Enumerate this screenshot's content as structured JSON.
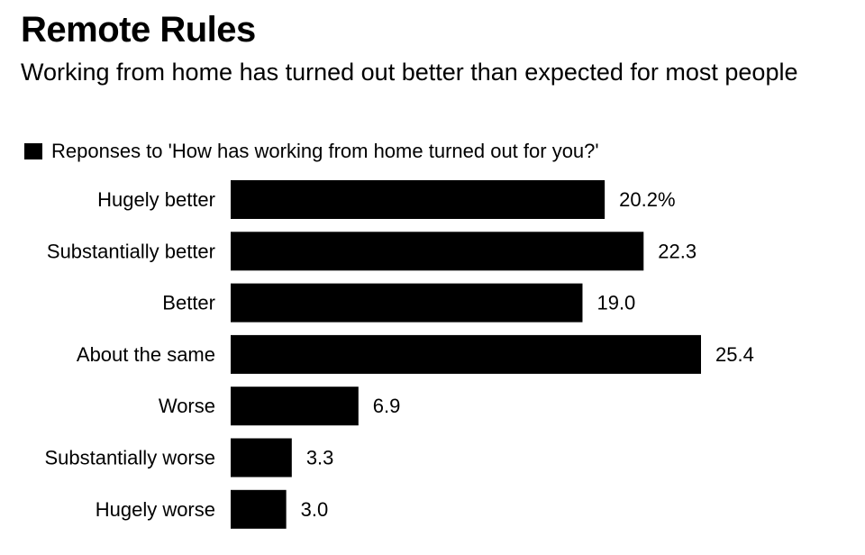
{
  "chart_data": {
    "type": "bar",
    "orientation": "horizontal",
    "title": "Remote Rules",
    "subtitle": "Working from home has turned out better than expected for most people",
    "categories": [
      "Hugely better",
      "Substantially better",
      "Better",
      "About the same",
      "Worse",
      "Substantially worse",
      "Hugely worse"
    ],
    "series": [
      {
        "name": "Reponses to 'How has working from home turned out for you?'",
        "values": [
          20.2,
          22.3,
          19.0,
          25.4,
          6.9,
          3.3,
          3.0
        ],
        "value_labels": [
          "20.2%",
          "22.3",
          "19.0",
          "25.4",
          "6.9",
          "3.3",
          "3.0"
        ],
        "color": "#000000"
      }
    ],
    "xlim": [
      0,
      25.4
    ],
    "grid": false,
    "legend_position": "top-left"
  }
}
